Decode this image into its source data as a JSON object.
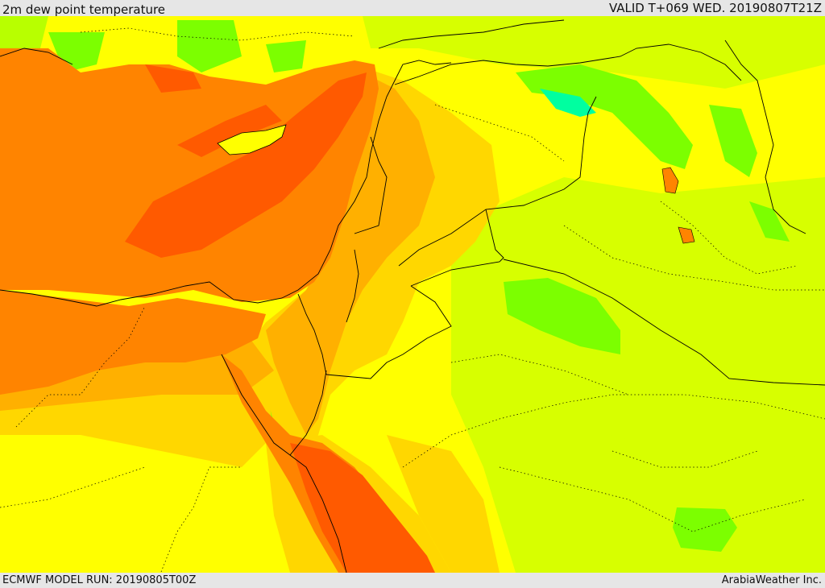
{
  "header": {
    "title": "2m dew point temperature",
    "valid": "VALID T+069 WED. 20190807T21Z"
  },
  "footer": {
    "model_run": "ECMWF MODEL RUN: 20190805T00Z",
    "credit": "ArabiaWeather Inc."
  },
  "palette": {
    "yellow_green": "#d7ff00",
    "yellow": "#ffff00",
    "gold": "#ffd700",
    "orange_light": "#ffb000",
    "orange": "#ff8400",
    "red_orange": "#ff5a00",
    "green": "#7cff00",
    "light_green": "#b8ff00",
    "cyan": "#00ffa0",
    "border": "#000000"
  }
}
